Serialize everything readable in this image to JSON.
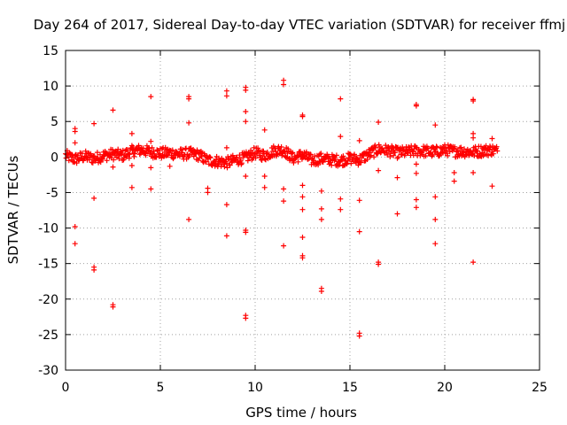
{
  "chart_data": {
    "type": "scatter",
    "title": "Day 264 of 2017, Sidereal Day-to-day VTEC variation (SDTVAR) for receiver ffmj",
    "xlabel": "GPS time / hours",
    "ylabel": "SDTVAR / TECUs",
    "xlim": [
      0,
      25
    ],
    "ylim": [
      -30,
      15
    ],
    "xticks": [
      0,
      5,
      10,
      15,
      20,
      25
    ],
    "yticks": [
      -30,
      -25,
      -20,
      -15,
      -10,
      -5,
      0,
      5,
      10,
      15
    ],
    "xtick_labels": [
      "0",
      "5",
      "10",
      "15",
      "20",
      "25"
    ],
    "ytick_labels": [
      "-30",
      "-25",
      "-20",
      "-15",
      "-10",
      "-5",
      "0",
      "5",
      "10",
      "15"
    ],
    "grid": true,
    "marker": "plus",
    "color": "#ff0000",
    "series": [
      {
        "name": "ffmj",
        "band": [
          [
            0.0,
            0.2
          ],
          [
            0.5,
            -0.3
          ],
          [
            1.0,
            0.1
          ],
          [
            1.5,
            -0.2
          ],
          [
            2.0,
            0.2
          ],
          [
            2.5,
            0.4
          ],
          [
            3.0,
            0.2
          ],
          [
            3.5,
            0.8
          ],
          [
            4.0,
            1.0
          ],
          [
            4.5,
            0.7
          ],
          [
            5.0,
            0.5
          ],
          [
            5.5,
            0.6
          ],
          [
            6.0,
            0.4
          ],
          [
            6.5,
            0.5
          ],
          [
            7.0,
            0.3
          ],
          [
            7.5,
            -0.5
          ],
          [
            8.0,
            -0.6
          ],
          [
            8.5,
            -0.8
          ],
          [
            9.0,
            -0.4
          ],
          [
            9.5,
            -0.1
          ],
          [
            10.0,
            0.6
          ],
          [
            10.5,
            0.2
          ],
          [
            11.0,
            0.9
          ],
          [
            11.5,
            1.0
          ],
          [
            12.0,
            -0.2
          ],
          [
            12.5,
            0.3
          ],
          [
            13.0,
            -0.5
          ],
          [
            13.5,
            -0.2
          ],
          [
            14.0,
            -0.4
          ],
          [
            14.5,
            -0.5
          ],
          [
            15.0,
            -0.2
          ],
          [
            15.5,
            -0.4
          ],
          [
            16.0,
            0.4
          ],
          [
            16.5,
            1.1
          ],
          [
            17.0,
            0.9
          ],
          [
            17.5,
            0.6
          ],
          [
            18.0,
            0.7
          ],
          [
            18.5,
            0.9
          ],
          [
            19.0,
            0.8
          ],
          [
            19.5,
            0.7
          ],
          [
            20.0,
            1.0
          ],
          [
            20.5,
            0.8
          ],
          [
            21.0,
            0.8
          ],
          [
            21.5,
            0.7
          ],
          [
            22.0,
            0.9
          ],
          [
            22.5,
            1.0
          ],
          [
            22.8,
            0.8
          ]
        ],
        "outliers": [
          [
            0.5,
            4.0
          ],
          [
            0.5,
            3.6
          ],
          [
            0.5,
            2.0
          ],
          [
            0.5,
            -9.8
          ],
          [
            0.5,
            -12.2
          ],
          [
            1.5,
            4.7
          ],
          [
            1.5,
            -5.8
          ],
          [
            1.5,
            -15.5
          ],
          [
            1.5,
            -15.9
          ],
          [
            2.5,
            6.6
          ],
          [
            2.5,
            -1.4
          ],
          [
            2.5,
            -20.8
          ],
          [
            2.5,
            -21.1
          ],
          [
            3.5,
            3.3
          ],
          [
            3.5,
            -1.2
          ],
          [
            3.5,
            -4.3
          ],
          [
            4.5,
            8.5
          ],
          [
            4.5,
            2.2
          ],
          [
            4.5,
            -1.5
          ],
          [
            4.5,
            -4.5
          ],
          [
            5.5,
            -1.3
          ],
          [
            6.5,
            8.5
          ],
          [
            6.5,
            8.2
          ],
          [
            6.5,
            4.8
          ],
          [
            6.5,
            -8.8
          ],
          [
            7.5,
            -4.4
          ],
          [
            7.5,
            -5.0
          ],
          [
            8.5,
            9.3
          ],
          [
            8.5,
            8.6
          ],
          [
            8.5,
            1.3
          ],
          [
            8.5,
            -6.7
          ],
          [
            8.5,
            -11.1
          ],
          [
            9.5,
            9.8
          ],
          [
            9.5,
            9.4
          ],
          [
            9.5,
            6.4
          ],
          [
            9.5,
            5.0
          ],
          [
            9.5,
            -2.7
          ],
          [
            9.5,
            -10.3
          ],
          [
            9.5,
            -10.6
          ],
          [
            9.5,
            -22.3
          ],
          [
            9.5,
            -22.7
          ],
          [
            10.5,
            3.8
          ],
          [
            10.5,
            -2.7
          ],
          [
            10.5,
            -4.3
          ],
          [
            11.5,
            10.8
          ],
          [
            11.5,
            10.2
          ],
          [
            11.5,
            -4.5
          ],
          [
            11.5,
            -6.2
          ],
          [
            11.5,
            -12.5
          ],
          [
            12.5,
            5.9
          ],
          [
            12.5,
            5.7
          ],
          [
            12.5,
            -4.0
          ],
          [
            12.5,
            -5.6
          ],
          [
            12.5,
            -7.4
          ],
          [
            12.5,
            -11.3
          ],
          [
            12.5,
            -13.9
          ],
          [
            12.5,
            -14.2
          ],
          [
            13.5,
            -4.8
          ],
          [
            13.5,
            -7.3
          ],
          [
            13.5,
            -8.8
          ],
          [
            13.5,
            -18.5
          ],
          [
            13.5,
            -18.9
          ],
          [
            14.5,
            8.2
          ],
          [
            14.5,
            2.9
          ],
          [
            14.5,
            -5.9
          ],
          [
            14.5,
            -7.4
          ],
          [
            15.5,
            2.3
          ],
          [
            15.5,
            -6.1
          ],
          [
            15.5,
            -10.5
          ],
          [
            15.5,
            -24.8
          ],
          [
            15.5,
            -25.2
          ],
          [
            16.5,
            4.9
          ],
          [
            16.5,
            -1.9
          ],
          [
            16.5,
            -14.8
          ],
          [
            16.5,
            -15.1
          ],
          [
            17.5,
            -2.9
          ],
          [
            17.5,
            -8.0
          ],
          [
            18.5,
            7.4
          ],
          [
            18.5,
            7.2
          ],
          [
            18.5,
            -1.0
          ],
          [
            18.5,
            -2.3
          ],
          [
            18.5,
            -6.0
          ],
          [
            18.5,
            -7.1
          ],
          [
            19.5,
            4.5
          ],
          [
            19.5,
            -5.6
          ],
          [
            19.5,
            -8.8
          ],
          [
            19.5,
            -12.2
          ],
          [
            20.5,
            -2.2
          ],
          [
            20.5,
            -3.4
          ],
          [
            21.5,
            8.1
          ],
          [
            21.5,
            7.9
          ],
          [
            21.5,
            3.3
          ],
          [
            21.5,
            2.7
          ],
          [
            21.5,
            -2.2
          ],
          [
            21.5,
            -14.8
          ],
          [
            22.5,
            2.6
          ],
          [
            22.5,
            -4.1
          ]
        ]
      }
    ]
  }
}
